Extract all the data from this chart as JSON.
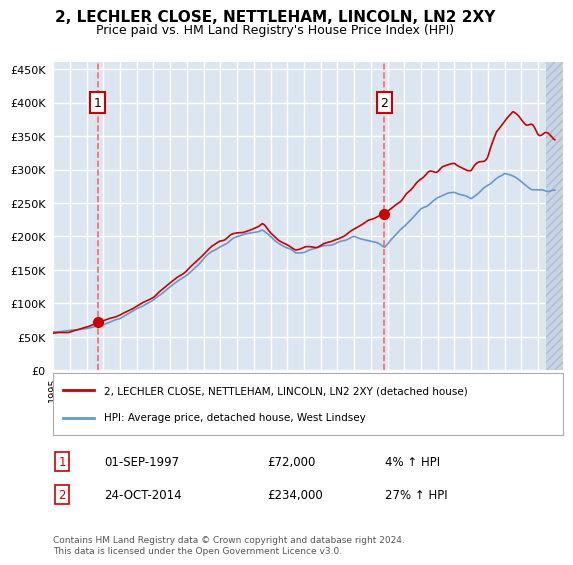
{
  "title": "2, LECHLER CLOSE, NETTLEHAM, LINCOLN, LN2 2XY",
  "subtitle": "Price paid vs. HM Land Registry's House Price Index (HPI)",
  "ylabel": "",
  "bg_color": "#dce6f1",
  "plot_bg_color": "#dce6f1",
  "hatch_color": "#c0c8d8",
  "grid_color": "#ffffff",
  "red_line_color": "#cc0000",
  "blue_line_color": "#6699cc",
  "marker_color": "#cc0000",
  "dashed_line_color": "#ff6666",
  "annotation_box_color": "#ffffff",
  "annotation_border_color": "#cc0000",
  "sale1_date_x": 1997.67,
  "sale1_price": 72000,
  "sale1_label": "1",
  "sale1_info": "01-SEP-1997    £72,000    4% ↑ HPI",
  "sale2_date_x": 2014.81,
  "sale2_price": 234000,
  "sale2_label": "2",
  "sale2_info": "24-OCT-2014    £234,000    27% ↑ HPI",
  "legend_line1": "2, LECHLER CLOSE, NETTLEHAM, LINCOLN, LN2 2XY (detached house)",
  "legend_line2": "HPI: Average price, detached house, West Lindsey",
  "footer": "Contains HM Land Registry data © Crown copyright and database right 2024.\nThis data is licensed under the Open Government Licence v3.0.",
  "xmin": 1995.0,
  "xmax": 2025.5,
  "ymin": 0,
  "ymax": 460000,
  "yticks": [
    0,
    50000,
    100000,
    150000,
    200000,
    250000,
    300000,
    350000,
    400000,
    450000
  ]
}
